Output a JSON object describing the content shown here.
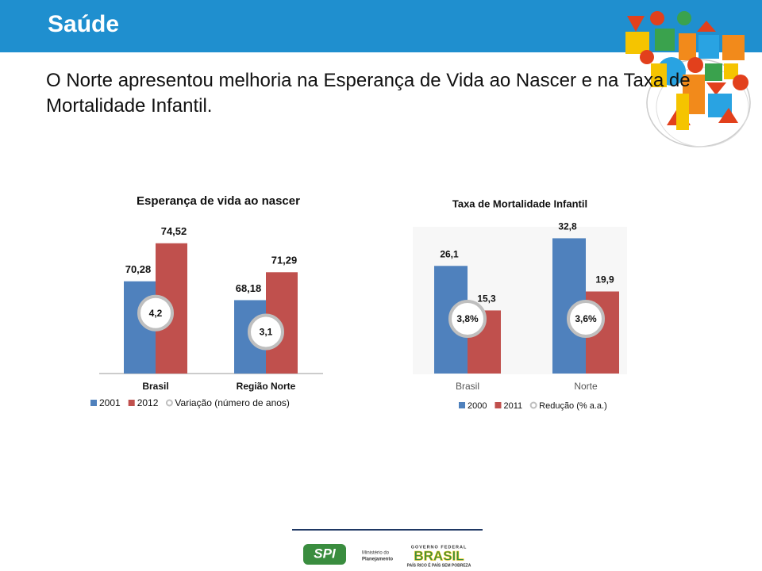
{
  "header": {
    "title": "Saúde"
  },
  "subtitle": "O Norte apresentou melhoria na Esperança de Vida ao Nascer e na Taxa de Mortalidade Infantil.",
  "chart_data": [
    {
      "type": "bar",
      "title": "Esperança de vida ao nascer",
      "categories": [
        "Brasil",
        "Região Norte"
      ],
      "series": [
        {
          "name": "2001",
          "color": "#4f81bd",
          "values": [
            70.28,
            68.18
          ],
          "value_labels": [
            "70,28",
            "68,18"
          ]
        },
        {
          "name": "2012",
          "color": "#c0504d",
          "values": [
            74.52,
            71.29
          ],
          "value_labels": [
            "74,52",
            "71,29"
          ]
        },
        {
          "name": "Variação (número de anos)",
          "color": "#bfbfbf",
          "values": [
            4.2,
            3.1
          ],
          "value_labels": [
            "4,2",
            "3,1"
          ]
        }
      ],
      "ylim": [
        60,
        76
      ]
    },
    {
      "type": "bar",
      "title": "Taxa de Mortalidade Infantil",
      "categories": [
        "Brasil",
        "Norte"
      ],
      "series": [
        {
          "name": "2000",
          "color": "#4f81bd",
          "values": [
            26.1,
            32.8
          ],
          "value_labels": [
            "26,1",
            "32,8"
          ]
        },
        {
          "name": "2011",
          "color": "#c0504d",
          "values": [
            15.3,
            19.9
          ],
          "value_labels": [
            "15,3",
            "19,9"
          ]
        },
        {
          "name": "Redução (% a.a.)",
          "color": "#bfbfbf",
          "values": [
            3.8,
            3.6
          ],
          "value_labels": [
            "3,8%",
            "3,6%"
          ]
        }
      ],
      "ylim": [
        0,
        35
      ]
    }
  ],
  "footer": {
    "logo": "SPI",
    "ministry": [
      "Ministério do",
      "Planejamento"
    ],
    "government": "GOVERNO FEDERAL",
    "country": "BRASIL",
    "slogan": "PAÍS RICO É PAÍS SEM POBREZA"
  }
}
